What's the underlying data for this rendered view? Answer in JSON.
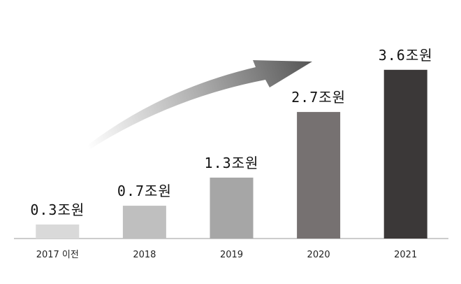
{
  "chart_data": {
    "type": "bar",
    "categories": [
      "2017 이전",
      "2018",
      "2019",
      "2020",
      "2021"
    ],
    "values": [
      0.3,
      0.7,
      1.3,
      2.7,
      3.6
    ],
    "value_labels": [
      "0.3조원",
      "0.7조원",
      "1.3조원",
      "2.7조원",
      "3.6조원"
    ],
    "colors": [
      "#d9d9d9",
      "#bfbfbf",
      "#a6a6a6",
      "#767171",
      "#3b3838"
    ],
    "ylim": [
      0,
      4
    ]
  }
}
